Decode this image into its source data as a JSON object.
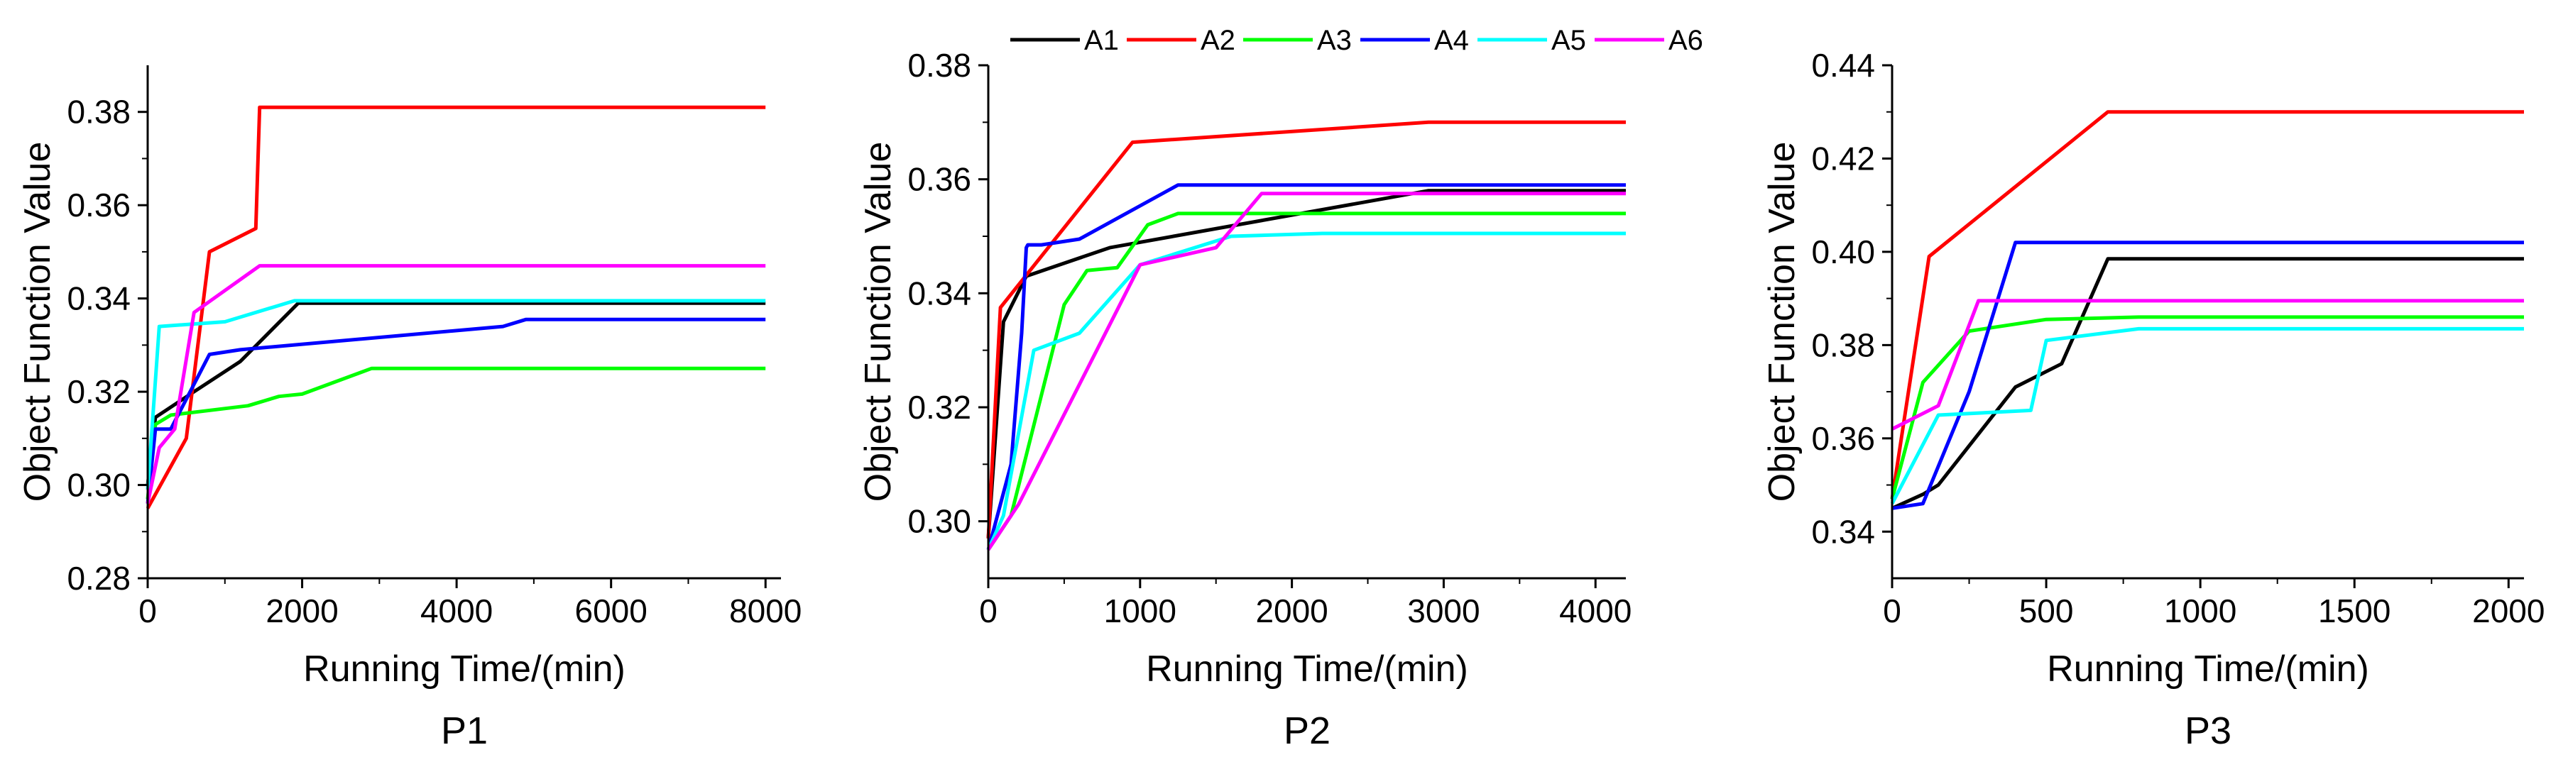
{
  "legend": {
    "entries": [
      {
        "name": "A1",
        "color": "#000000"
      },
      {
        "name": "A2",
        "color": "#ff0000"
      },
      {
        "name": "A3",
        "color": "#00ff00"
      },
      {
        "name": "A4",
        "color": "#0000ff"
      },
      {
        "name": "A5",
        "color": "#00ffff"
      },
      {
        "name": "A6",
        "color": "#ff00ff"
      }
    ],
    "placement": "top-center"
  },
  "chart_data": [
    {
      "type": "line",
      "title": "P1",
      "xlabel": "Running Time/(min)",
      "ylabel": "Object Function Value",
      "xlim": [
        0,
        8200
      ],
      "ylim": [
        0.28,
        0.39
      ],
      "xticks": [
        0,
        2000,
        4000,
        6000,
        8000
      ],
      "xtick_labels": [
        "0",
        "2000",
        "4000",
        "6000",
        "8000"
      ],
      "yticks": [
        0.28,
        0.3,
        0.32,
        0.34,
        0.36,
        0.38
      ],
      "ytick_labels": [
        "0.28",
        "0.30",
        "0.32",
        "0.34",
        "0.36",
        "0.38"
      ],
      "grid": false,
      "series": [
        {
          "name": "A1",
          "x": [
            0,
            100,
            600,
            1200,
            1950,
            8000
          ],
          "y": [
            0.3,
            0.3145,
            0.32,
            0.3265,
            0.339,
            0.339
          ]
        },
        {
          "name": "A2",
          "x": [
            0,
            500,
            800,
            1400,
            1450,
            8000
          ],
          "y": [
            0.295,
            0.31,
            0.35,
            0.355,
            0.381,
            0.381
          ]
        },
        {
          "name": "A3",
          "x": [
            0,
            100,
            300,
            1300,
            1700,
            2000,
            2900,
            8000
          ],
          "y": [
            0.297,
            0.313,
            0.315,
            0.317,
            0.319,
            0.3195,
            0.325,
            0.325
          ]
        },
        {
          "name": "A4",
          "x": [
            0,
            100,
            300,
            800,
            1200,
            4600,
            4900,
            8000
          ],
          "y": [
            0.296,
            0.312,
            0.312,
            0.328,
            0.329,
            0.334,
            0.3355,
            0.3355
          ]
        },
        {
          "name": "A5",
          "x": [
            0,
            150,
            1000,
            1900,
            8000
          ],
          "y": [
            0.299,
            0.334,
            0.335,
            0.3395,
            0.3395
          ]
        },
        {
          "name": "A6",
          "x": [
            0,
            150,
            350,
            600,
            1450,
            8000
          ],
          "y": [
            0.296,
            0.308,
            0.312,
            0.337,
            0.347,
            0.347
          ]
        }
      ]
    },
    {
      "type": "line",
      "title": "P2",
      "xlabel": "Running Time/(min)",
      "ylabel": "Object Function Value",
      "xlim": [
        0,
        4200
      ],
      "ylim": [
        0.29,
        0.38
      ],
      "xticks": [
        0,
        1000,
        2000,
        3000,
        4000
      ],
      "xtick_labels": [
        "0",
        "1000",
        "2000",
        "3000",
        "4000"
      ],
      "yticks": [
        0.3,
        0.32,
        0.34,
        0.36,
        0.38
      ],
      "ytick_labels": [
        "0.30",
        "0.32",
        "0.34",
        "0.36",
        "0.38"
      ],
      "grid": false,
      "series": [
        {
          "name": "A1",
          "x": [
            0,
            100,
            250,
            800,
            2900,
            4200
          ],
          "y": [
            0.297,
            0.335,
            0.343,
            0.348,
            0.358,
            0.358
          ]
        },
        {
          "name": "A2",
          "x": [
            0,
            80,
            950,
            2900,
            4200
          ],
          "y": [
            0.297,
            0.3375,
            0.3665,
            0.37,
            0.37
          ]
        },
        {
          "name": "A3",
          "x": [
            0,
            150,
            500,
            650,
            850,
            1050,
            1250,
            4200
          ],
          "y": [
            0.295,
            0.301,
            0.338,
            0.344,
            0.3445,
            0.352,
            0.354,
            0.354
          ]
        },
        {
          "name": "A4",
          "x": [
            0,
            150,
            220,
            250,
            260,
            350,
            600,
            1250,
            4200
          ],
          "y": [
            0.295,
            0.31,
            0.333,
            0.348,
            0.3485,
            0.3485,
            0.3495,
            0.359,
            0.359
          ]
        },
        {
          "name": "A5",
          "x": [
            0,
            100,
            300,
            600,
            1000,
            1600,
            2200,
            4200
          ],
          "y": [
            0.295,
            0.301,
            0.33,
            0.333,
            0.345,
            0.35,
            0.3505,
            0.3505
          ]
        },
        {
          "name": "A6",
          "x": [
            0,
            200,
            1000,
            1500,
            1800,
            4200
          ],
          "y": [
            0.295,
            0.303,
            0.345,
            0.348,
            0.3575,
            0.3575
          ]
        }
      ]
    },
    {
      "type": "line",
      "title": "P3",
      "xlabel": "Running Time/(min)",
      "ylabel": "Object Function Value",
      "xlim": [
        0,
        2050
      ],
      "ylim": [
        0.33,
        0.44
      ],
      "xticks": [
        0,
        500,
        1000,
        1500,
        2000
      ],
      "xtick_labels": [
        "0",
        "500",
        "1000",
        "1500",
        "2000"
      ],
      "yticks": [
        0.34,
        0.36,
        0.38,
        0.4,
        0.42,
        0.44
      ],
      "ytick_labels": [
        "0.34",
        "0.36",
        "0.38",
        "0.40",
        "0.42",
        "0.44"
      ],
      "grid": false,
      "series": [
        {
          "name": "A1",
          "x": [
            0,
            100,
            150,
            400,
            550,
            700,
            2050
          ],
          "y": [
            0.345,
            0.348,
            0.35,
            0.371,
            0.376,
            0.3985,
            0.3985
          ]
        },
        {
          "name": "A2",
          "x": [
            0,
            120,
            700,
            2050
          ],
          "y": [
            0.347,
            0.399,
            0.43,
            0.43
          ]
        },
        {
          "name": "A3",
          "x": [
            0,
            100,
            250,
            500,
            800,
            2050
          ],
          "y": [
            0.347,
            0.372,
            0.383,
            0.3855,
            0.386,
            0.386
          ]
        },
        {
          "name": "A4",
          "x": [
            0,
            100,
            250,
            400,
            2050
          ],
          "y": [
            0.345,
            0.346,
            0.37,
            0.402,
            0.402
          ]
        },
        {
          "name": "A5",
          "x": [
            0,
            150,
            450,
            500,
            800,
            2050
          ],
          "y": [
            0.346,
            0.365,
            0.366,
            0.381,
            0.3835,
            0.3835
          ]
        },
        {
          "name": "A6",
          "x": [
            0,
            150,
            280,
            2050
          ],
          "y": [
            0.362,
            0.367,
            0.3895,
            0.3895
          ]
        }
      ]
    }
  ]
}
